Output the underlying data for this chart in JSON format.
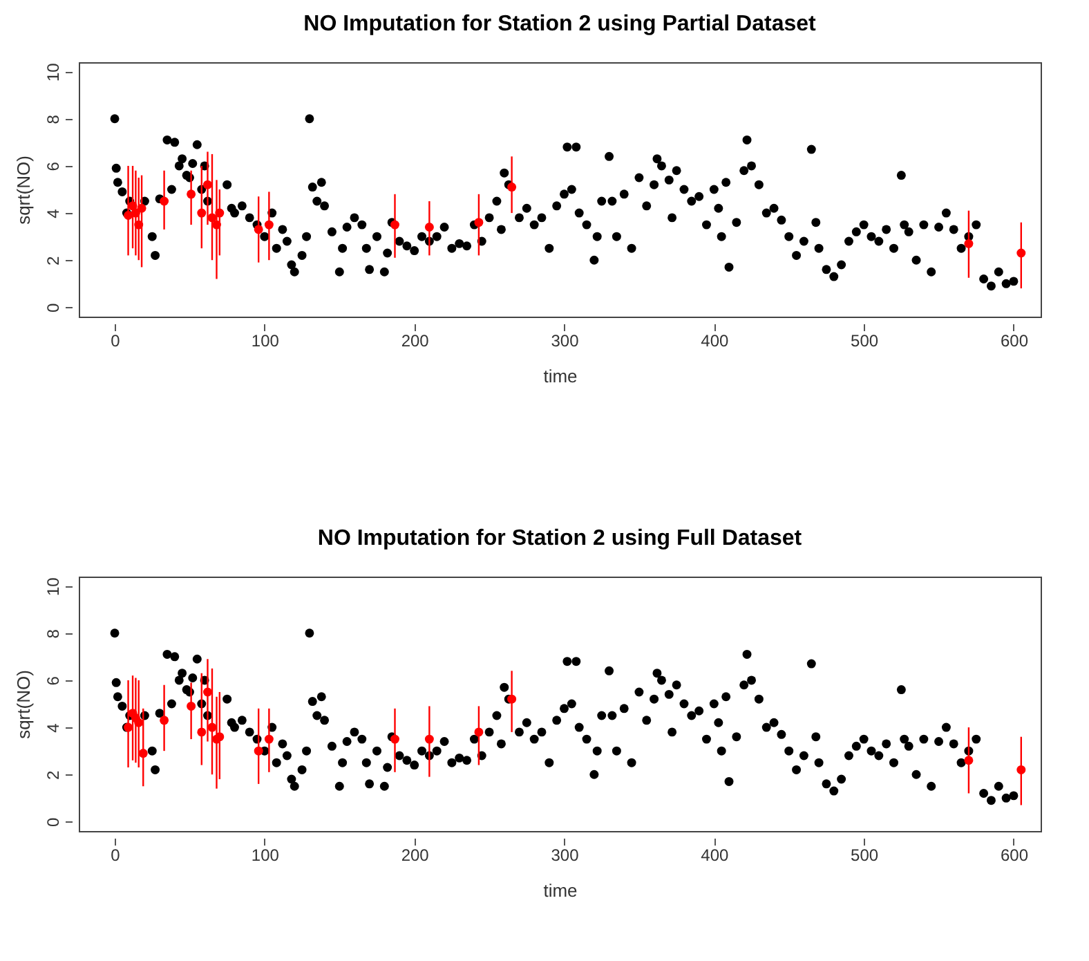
{
  "chart_data": [
    {
      "type": "scatter",
      "title": "NO Imputation for Station 2 using Partial Dataset",
      "xlabel": "time",
      "ylabel": "sqrt(NO)",
      "xlim": [
        -24,
        618
      ],
      "ylim": [
        -0.4,
        10.4
      ],
      "xticks": [
        0,
        100,
        200,
        300,
        400,
        500,
        600
      ],
      "yticks": [
        0,
        2,
        4,
        6,
        8,
        10
      ],
      "grid": false,
      "marker": "circle",
      "series": [
        {
          "color": "#000000",
          "x": [
            0,
            1,
            2,
            5,
            8,
            10,
            20,
            25,
            27,
            30,
            35,
            38,
            40,
            43,
            45,
            48,
            50,
            52,
            55,
            58,
            60,
            62,
            75,
            78,
            80,
            85,
            90,
            95,
            100,
            105,
            108,
            112,
            115,
            118,
            120,
            125,
            128,
            130,
            132,
            135,
            138,
            140,
            145,
            150,
            152,
            155,
            160,
            165,
            168,
            170,
            175,
            180,
            182,
            185,
            190,
            195,
            200,
            205,
            210,
            215,
            220,
            225,
            230,
            235,
            240,
            245,
            250,
            255,
            258,
            260,
            263,
            270,
            275,
            280,
            285,
            290,
            295,
            300,
            302,
            305,
            308,
            310,
            315,
            320,
            322,
            325,
            330,
            332,
            335,
            340,
            345,
            350,
            355,
            360,
            362,
            365,
            370,
            372,
            375,
            380,
            385,
            390,
            395,
            400,
            403,
            405,
            408,
            410,
            415,
            420,
            422,
            425,
            430,
            435,
            440,
            445,
            450,
            455,
            460,
            465,
            468,
            470,
            475,
            480,
            485,
            490,
            495,
            500,
            505,
            510,
            515,
            520,
            525,
            527,
            530,
            535,
            540,
            545,
            550,
            555,
            560,
            565,
            570,
            575,
            580,
            585,
            590,
            595,
            600
          ],
          "values": [
            8.0,
            5.9,
            5.3,
            4.9,
            4.0,
            4.5,
            4.5,
            3.0,
            2.2,
            4.6,
            7.1,
            5.0,
            7.0,
            6.0,
            6.3,
            5.6,
            5.5,
            6.1,
            6.9,
            5.0,
            6.0,
            4.5,
            5.2,
            4.2,
            4.0,
            4.3,
            3.8,
            3.5,
            3.0,
            4.0,
            2.5,
            3.3,
            2.8,
            1.8,
            1.5,
            2.2,
            3.0,
            8.0,
            5.1,
            4.5,
            5.3,
            4.3,
            3.2,
            1.5,
            2.5,
            3.4,
            3.8,
            3.5,
            2.5,
            1.6,
            3.0,
            1.5,
            2.3,
            3.6,
            2.8,
            2.6,
            2.4,
            3.0,
            2.8,
            3.0,
            3.4,
            2.5,
            2.7,
            2.6,
            3.5,
            2.8,
            3.8,
            4.5,
            3.3,
            5.7,
            5.2,
            3.8,
            4.2,
            3.5,
            3.8,
            2.5,
            4.3,
            4.8,
            6.8,
            5.0,
            6.8,
            4.0,
            3.5,
            2.0,
            3.0,
            4.5,
            6.4,
            4.5,
            3.0,
            4.8,
            2.5,
            5.5,
            4.3,
            5.2,
            6.3,
            6.0,
            5.4,
            3.8,
            5.8,
            5.0,
            4.5,
            4.7,
            3.5,
            5.0,
            4.2,
            3.0,
            5.3,
            1.7,
            3.6,
            5.8,
            7.1,
            6.0,
            5.2,
            4.0,
            4.2,
            3.7,
            3.0,
            2.2,
            2.8,
            6.7,
            3.6,
            2.5,
            1.6,
            1.3,
            1.8,
            2.8,
            3.2,
            3.5,
            3.0,
            2.8,
            3.3,
            2.5,
            5.6,
            3.5,
            3.2,
            2.0,
            3.5,
            1.5,
            3.4,
            4.0,
            3.3,
            2.5,
            3.0,
            3.5,
            1.2,
            0.9,
            1.5,
            1.0,
            1.1
          ]
        },
        {
          "color": "#ff0000",
          "x": [
            9,
            12,
            14,
            16,
            18,
            33,
            51,
            58,
            62,
            65,
            68,
            70,
            96,
            103,
            187,
            210,
            243,
            265,
            570,
            605
          ],
          "values": [
            3.9,
            4.3,
            4.0,
            3.5,
            4.2,
            4.5,
            4.8,
            4.0,
            5.2,
            3.8,
            3.5,
            4.0,
            3.3,
            3.5,
            3.5,
            3.4,
            3.6,
            5.1,
            2.7,
            2.3
          ],
          "errors": [
            [
              2.2,
              6.0
            ],
            [
              2.5,
              6.0
            ],
            [
              2.2,
              5.8
            ],
            [
              2.0,
              5.5
            ],
            [
              1.7,
              5.6
            ],
            [
              3.3,
              5.8
            ],
            [
              3.5,
              5.8
            ],
            [
              2.5,
              6.0
            ],
            [
              3.5,
              6.6
            ],
            [
              2.0,
              6.5
            ],
            [
              1.2,
              5.4
            ],
            [
              2.2,
              5.0
            ],
            [
              1.9,
              4.7
            ],
            [
              2.0,
              4.9
            ],
            [
              2.1,
              4.8
            ],
            [
              2.2,
              4.5
            ],
            [
              2.2,
              4.8
            ],
            [
              4.0,
              6.4
            ],
            [
              1.25,
              4.1
            ],
            [
              0.8,
              3.6
            ]
          ]
        }
      ]
    },
    {
      "type": "scatter",
      "title": "NO Imputation for Station 2 using Full Dataset",
      "xlabel": "time",
      "ylabel": "sqrt(NO)",
      "xlim": [
        -24,
        618
      ],
      "ylim": [
        -0.4,
        10.4
      ],
      "xticks": [
        0,
        100,
        200,
        300,
        400,
        500,
        600
      ],
      "yticks": [
        0,
        2,
        4,
        6,
        8,
        10
      ],
      "grid": false,
      "marker": "circle",
      "series": [
        {
          "color": "#000000",
          "x": [
            0,
            1,
            2,
            5,
            8,
            10,
            20,
            25,
            27,
            30,
            35,
            38,
            40,
            43,
            45,
            48,
            50,
            52,
            55,
            58,
            60,
            62,
            75,
            78,
            80,
            85,
            90,
            95,
            100,
            105,
            108,
            112,
            115,
            118,
            120,
            125,
            128,
            130,
            132,
            135,
            138,
            140,
            145,
            150,
            152,
            155,
            160,
            165,
            168,
            170,
            175,
            180,
            182,
            185,
            190,
            195,
            200,
            205,
            210,
            215,
            220,
            225,
            230,
            235,
            240,
            245,
            250,
            255,
            258,
            260,
            263,
            270,
            275,
            280,
            285,
            290,
            295,
            300,
            302,
            305,
            308,
            310,
            315,
            320,
            322,
            325,
            330,
            332,
            335,
            340,
            345,
            350,
            355,
            360,
            362,
            365,
            370,
            372,
            375,
            380,
            385,
            390,
            395,
            400,
            403,
            405,
            408,
            410,
            415,
            420,
            422,
            425,
            430,
            435,
            440,
            445,
            450,
            455,
            460,
            465,
            468,
            470,
            475,
            480,
            485,
            490,
            495,
            500,
            505,
            510,
            515,
            520,
            525,
            527,
            530,
            535,
            540,
            545,
            550,
            555,
            560,
            565,
            570,
            575,
            580,
            585,
            590,
            595,
            600
          ],
          "values": [
            8.0,
            5.9,
            5.3,
            4.9,
            4.0,
            4.5,
            4.5,
            3.0,
            2.2,
            4.6,
            7.1,
            5.0,
            7.0,
            6.0,
            6.3,
            5.6,
            5.5,
            6.1,
            6.9,
            5.0,
            6.0,
            4.5,
            5.2,
            4.2,
            4.0,
            4.3,
            3.8,
            3.5,
            3.0,
            4.0,
            2.5,
            3.3,
            2.8,
            1.8,
            1.5,
            2.2,
            3.0,
            8.0,
            5.1,
            4.5,
            5.3,
            4.3,
            3.2,
            1.5,
            2.5,
            3.4,
            3.8,
            3.5,
            2.5,
            1.6,
            3.0,
            1.5,
            2.3,
            3.6,
            2.8,
            2.6,
            2.4,
            3.0,
            2.8,
            3.0,
            3.4,
            2.5,
            2.7,
            2.6,
            3.5,
            2.8,
            3.8,
            4.5,
            3.3,
            5.7,
            5.2,
            3.8,
            4.2,
            3.5,
            3.8,
            2.5,
            4.3,
            4.8,
            6.8,
            5.0,
            6.8,
            4.0,
            3.5,
            2.0,
            3.0,
            4.5,
            6.4,
            4.5,
            3.0,
            4.8,
            2.5,
            5.5,
            4.3,
            5.2,
            6.3,
            6.0,
            5.4,
            3.8,
            5.8,
            5.0,
            4.5,
            4.7,
            3.5,
            5.0,
            4.2,
            3.0,
            5.3,
            1.7,
            3.6,
            5.8,
            7.1,
            6.0,
            5.2,
            4.0,
            4.2,
            3.7,
            3.0,
            2.2,
            2.8,
            6.7,
            3.6,
            2.5,
            1.6,
            1.3,
            1.8,
            2.8,
            3.2,
            3.5,
            3.0,
            2.8,
            3.3,
            2.5,
            5.6,
            3.5,
            3.2,
            2.0,
            3.5,
            1.5,
            3.4,
            4.0,
            3.3,
            2.5,
            3.0,
            3.5,
            1.2,
            0.9,
            1.5,
            1.0,
            1.1
          ]
        },
        {
          "color": "#ff0000",
          "x": [
            9,
            12,
            14,
            16,
            19,
            33,
            51,
            58,
            62,
            65,
            68,
            70,
            96,
            103,
            187,
            210,
            243,
            265,
            570,
            605
          ],
          "values": [
            4.0,
            4.6,
            4.4,
            4.2,
            2.9,
            4.3,
            4.9,
            3.8,
            5.5,
            4.0,
            3.5,
            3.6,
            3.0,
            3.5,
            3.5,
            3.5,
            3.8,
            5.2,
            2.6,
            2.2
          ],
          "errors": [
            [
              2.3,
              6.0
            ],
            [
              2.6,
              6.2
            ],
            [
              2.5,
              6.1
            ],
            [
              2.3,
              6.0
            ],
            [
              1.5,
              4.8
            ],
            [
              3.0,
              5.8
            ],
            [
              3.5,
              5.9
            ],
            [
              2.4,
              6.3
            ],
            [
              3.4,
              6.9
            ],
            [
              2.0,
              6.5
            ],
            [
              1.4,
              5.3
            ],
            [
              1.8,
              5.5
            ],
            [
              1.6,
              4.8
            ],
            [
              2.1,
              4.8
            ],
            [
              2.1,
              4.8
            ],
            [
              1.9,
              4.9
            ],
            [
              2.4,
              4.9
            ],
            [
              3.8,
              6.4
            ],
            [
              1.2,
              4.0
            ],
            [
              0.7,
              3.6
            ]
          ]
        }
      ]
    }
  ]
}
